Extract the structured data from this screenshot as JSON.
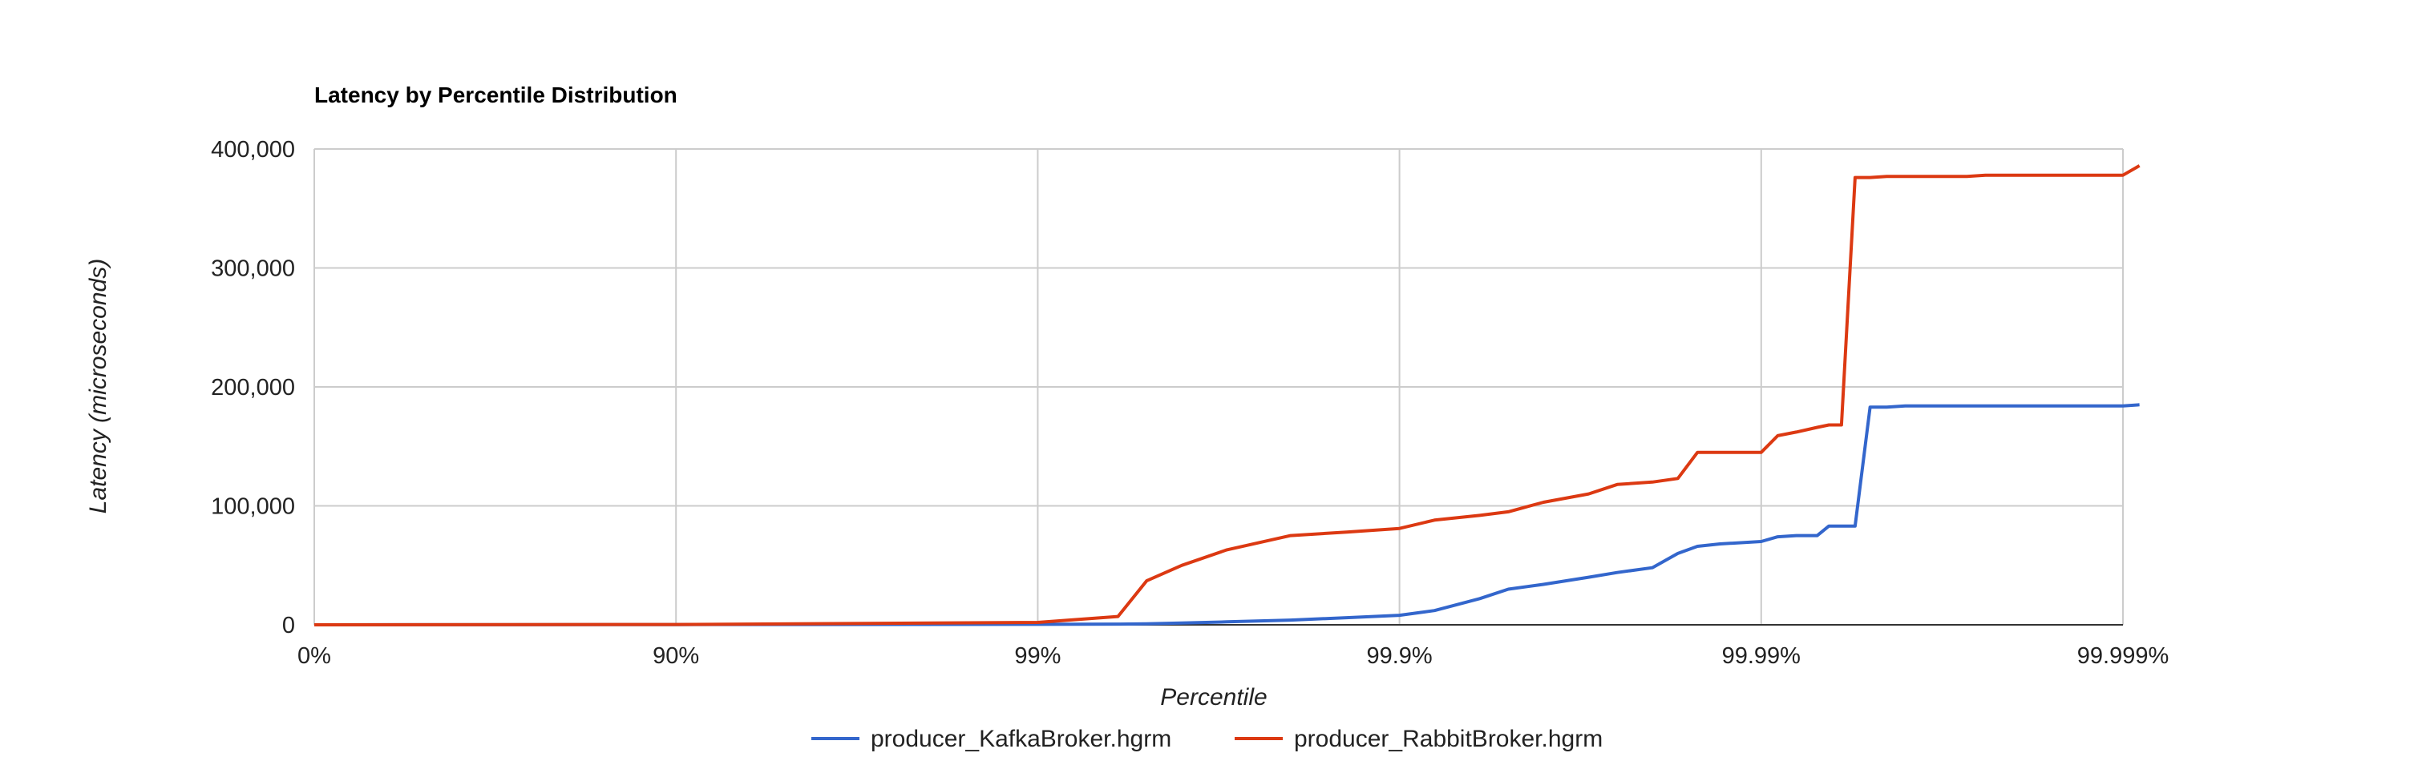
{
  "chart_data": {
    "type": "line",
    "title": "Latency by Percentile Distribution",
    "xlabel": "Percentile",
    "ylabel": "Latency (microseconds)",
    "x_scale": "log-of-reciprocal (percentile)",
    "x_tick_labels": [
      "0%",
      "90%",
      "99%",
      "99.9%",
      "99.99%",
      "99.999%"
    ],
    "y_ticks": [
      0,
      100000,
      200000,
      300000,
      400000
    ],
    "y_tick_labels": [
      "0",
      "100,000",
      "200,000",
      "300,000",
      "400,000"
    ],
    "ylim": [
      0,
      400000
    ],
    "grid": true,
    "legend_position": "bottom",
    "x": [
      0,
      90,
      99,
      99.4,
      99.5,
      99.6,
      99.7,
      99.8,
      99.86,
      99.9,
      99.92,
      99.94,
      99.95,
      99.96,
      99.97,
      99.975,
      99.98,
      99.983,
      99.985,
      99.987,
      99.99,
      99.991,
      99.992,
      99.993,
      99.9935,
      99.994,
      99.9945,
      99.995,
      99.9955,
      99.996,
      99.9965,
      99.997,
      99.9973,
      99.9976,
      99.9978,
      99.998,
      99.9983,
      99.9985,
      99.999,
      99.9991
    ],
    "series": [
      {
        "name": "producer_KafkaBroker.hgrm",
        "color": "#3366cc",
        "values": [
          0,
          200,
          400,
          600,
          800,
          1500,
          2500,
          4000,
          6000,
          8000,
          12000,
          22000,
          30000,
          34000,
          40000,
          44000,
          48000,
          60000,
          66000,
          68000,
          70000,
          74000,
          75000,
          75000,
          83000,
          83000,
          83000,
          183000,
          183000,
          184000,
          184000,
          184000,
          184000,
          184000,
          184000,
          184000,
          184000,
          184000,
          184000,
          185000
        ]
      },
      {
        "name": "producer_RabbitBroker.hgrm",
        "color": "#dc3912",
        "values": [
          0,
          300,
          2000,
          7000,
          37000,
          50000,
          63000,
          75000,
          78000,
          81000,
          88000,
          92000,
          95000,
          103000,
          110000,
          118000,
          120000,
          123000,
          145000,
          145000,
          145000,
          159000,
          162000,
          166000,
          168000,
          168000,
          376000,
          376000,
          377000,
          377000,
          377000,
          377000,
          377000,
          378000,
          378000,
          378000,
          378000,
          378000,
          378000,
          386000
        ]
      }
    ]
  }
}
